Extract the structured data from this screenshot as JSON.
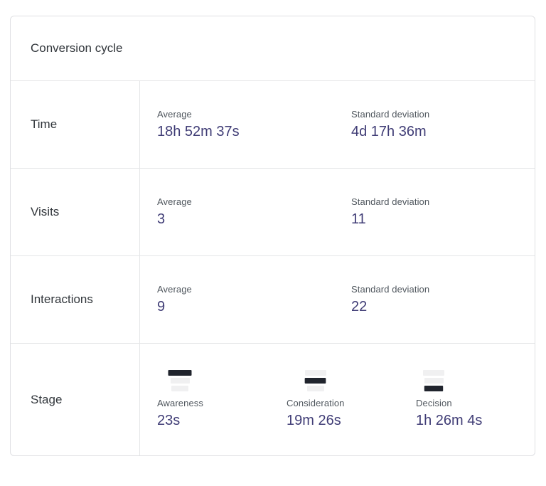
{
  "card": {
    "title": "Conversion cycle",
    "colors": {
      "value_accent": "#403d76",
      "label_gray": "#50575e",
      "text_dark": "#31363b",
      "border": "#e5e6e8",
      "funnel_active": "#20242d",
      "funnel_inactive": "#f0f0f1"
    },
    "rows": [
      {
        "label": "Time",
        "cells": [
          {
            "label": "Average",
            "value": "18h 52m 37s"
          },
          {
            "label": "Standard deviation",
            "value": "4d 17h 36m"
          }
        ]
      },
      {
        "label": "Visits",
        "cells": [
          {
            "label": "Average",
            "value": "3"
          },
          {
            "label": "Standard deviation",
            "value": "11"
          }
        ]
      },
      {
        "label": "Interactions",
        "cells": [
          {
            "label": "Average",
            "value": "9"
          },
          {
            "label": "Standard deviation",
            "value": "22"
          }
        ]
      }
    ],
    "stage_row": {
      "label": "Stage",
      "stages": [
        {
          "label": "Awareness",
          "value": "23s",
          "icon": "funnel-icon",
          "active_segment": 0
        },
        {
          "label": "Consideration",
          "value": "19m 26s",
          "icon": "funnel-icon",
          "active_segment": 1
        },
        {
          "label": "Decision",
          "value": "1h 26m 4s",
          "icon": "funnel-icon",
          "active_segment": 2
        }
      ]
    }
  }
}
